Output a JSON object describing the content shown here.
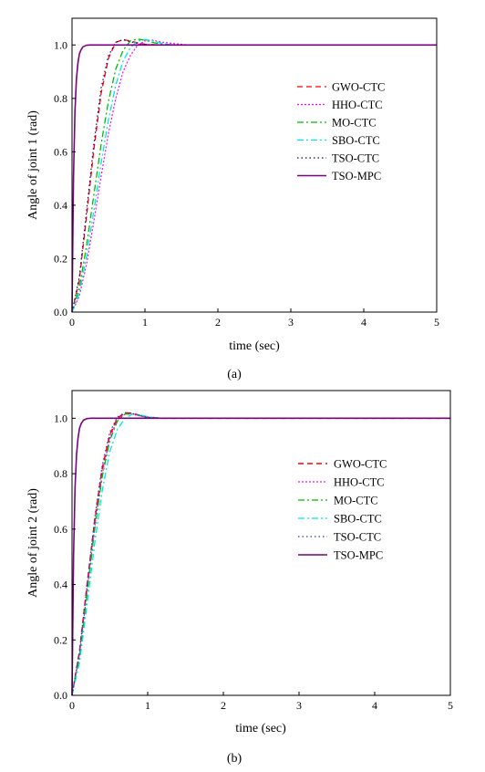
{
  "chart_data": [
    {
      "type": "line",
      "caption": "(a)",
      "xlabel": "time (sec)",
      "ylabel": "Angle of joint 1 (rad)",
      "xlim": [
        0,
        5
      ],
      "ylim": [
        0,
        1.1
      ],
      "xticks": [
        "0",
        "1",
        "2",
        "3",
        "4",
        "5"
      ],
      "yticks": [
        "0.0",
        "0.2",
        "0.4",
        "0.6",
        "0.8",
        "1.0"
      ],
      "grid": false,
      "legend_position": "right",
      "series": [
        {
          "name": "GWO-CTC",
          "color": "#ff0000",
          "dash": "6,4",
          "width": 1.3,
          "x": [
            0,
            0.1,
            0.2,
            0.3,
            0.4,
            0.5,
            0.6,
            0.7,
            0.8,
            0.9,
            1.0,
            1.2,
            1.5,
            2,
            5
          ],
          "y": [
            0,
            0.12,
            0.36,
            0.61,
            0.82,
            0.95,
            1.01,
            1.02,
            1.015,
            1.008,
            1.003,
            1.0,
            1.0,
            1.0,
            1.0
          ]
        },
        {
          "name": "HHO-CTC",
          "color": "#ff00ff",
          "dash": "2,2",
          "width": 1.2,
          "x": [
            0,
            0.1,
            0.2,
            0.3,
            0.4,
            0.5,
            0.6,
            0.7,
            0.8,
            0.9,
            1.0,
            1.1,
            1.2,
            1.4,
            1.6,
            2,
            5
          ],
          "y": [
            0,
            0.06,
            0.18,
            0.34,
            0.51,
            0.67,
            0.8,
            0.9,
            0.96,
            1.0,
            1.015,
            1.018,
            1.012,
            1.005,
            1.0,
            1.0,
            1.0
          ]
        },
        {
          "name": "MO-CTC",
          "color": "#00bb00",
          "dash": "7,3,2,3",
          "width": 1.3,
          "x": [
            0,
            0.1,
            0.2,
            0.3,
            0.4,
            0.5,
            0.6,
            0.7,
            0.8,
            0.9,
            1.0,
            1.1,
            1.2,
            1.4,
            2,
            5
          ],
          "y": [
            0,
            0.09,
            0.25,
            0.44,
            0.63,
            0.79,
            0.91,
            0.98,
            1.015,
            1.022,
            1.018,
            1.01,
            1.004,
            1.0,
            1.0,
            1.0
          ]
        },
        {
          "name": "SBO-CTC",
          "color": "#00e5e5",
          "dash": "7,3,2,3",
          "width": 1.3,
          "x": [
            0,
            0.1,
            0.2,
            0.3,
            0.4,
            0.5,
            0.6,
            0.7,
            0.8,
            0.9,
            1.0,
            1.1,
            1.2,
            1.4,
            2,
            5
          ],
          "y": [
            0,
            0.07,
            0.21,
            0.38,
            0.56,
            0.72,
            0.85,
            0.94,
            0.99,
            1.015,
            1.02,
            1.016,
            1.008,
            1.0,
            1.0,
            1.0
          ]
        },
        {
          "name": "TSO-CTC",
          "color": "#000080",
          "dash": "1.5,3",
          "width": 1.2,
          "x": [
            0,
            0.1,
            0.2,
            0.3,
            0.4,
            0.5,
            0.6,
            0.7,
            0.8,
            0.9,
            1.0,
            1.2,
            1.5,
            2,
            5
          ],
          "y": [
            0,
            0.13,
            0.38,
            0.63,
            0.84,
            0.96,
            1.01,
            1.02,
            1.012,
            1.006,
            1.002,
            1.0,
            1.0,
            1.0,
            1.0
          ]
        },
        {
          "name": "TSO-MPC",
          "color": "#7a0080",
          "dash": "",
          "width": 1.6,
          "x": [
            0,
            0.02,
            0.04,
            0.06,
            0.08,
            0.1,
            0.12,
            0.15,
            0.2,
            0.25,
            0.3,
            0.4,
            5
          ],
          "y": [
            0,
            0.5,
            0.75,
            0.87,
            0.93,
            0.965,
            0.98,
            0.993,
            0.999,
            1.0,
            1.0,
            1.0,
            1.0
          ]
        }
      ]
    },
    {
      "type": "line",
      "caption": "(b)",
      "xlabel": "time (sec)",
      "ylabel": "Angle of joint 2 (rad)",
      "xlim": [
        0,
        5
      ],
      "ylim": [
        0,
        1.1
      ],
      "xticks": [
        "0",
        "1",
        "2",
        "3",
        "4",
        "5"
      ],
      "yticks": [
        "0.0",
        "0.2",
        "0.4",
        "0.6",
        "0.8",
        "1.0"
      ],
      "grid": false,
      "legend_position": "right",
      "series": [
        {
          "name": "GWO-CTC",
          "color": "#ff0000",
          "dash": "6,4",
          "width": 1.6,
          "x": [
            0,
            0.1,
            0.2,
            0.3,
            0.4,
            0.5,
            0.6,
            0.7,
            0.8,
            0.9,
            1.0,
            1.2,
            2,
            5
          ],
          "y": [
            0,
            0.16,
            0.4,
            0.63,
            0.82,
            0.94,
            1.0,
            1.02,
            1.018,
            1.01,
            1.004,
            1.0,
            1.0,
            1.0
          ]
        },
        {
          "name": "HHO-CTC",
          "color": "#ff00ff",
          "dash": "2,2",
          "width": 1.2,
          "x": [
            0,
            0.1,
            0.2,
            0.3,
            0.4,
            0.5,
            0.6,
            0.7,
            0.8,
            0.9,
            1.0,
            1.2,
            2,
            5
          ],
          "y": [
            0,
            0.15,
            0.38,
            0.61,
            0.8,
            0.93,
            0.995,
            1.015,
            1.015,
            1.008,
            1.003,
            1.0,
            1.0,
            1.0
          ]
        },
        {
          "name": "MO-CTC",
          "color": "#00bb00",
          "dash": "7,3,2,3",
          "width": 1.3,
          "x": [
            0,
            0.1,
            0.2,
            0.3,
            0.4,
            0.5,
            0.6,
            0.7,
            0.8,
            0.9,
            1.0,
            1.2,
            2,
            5
          ],
          "y": [
            0,
            0.14,
            0.37,
            0.6,
            0.79,
            0.92,
            0.99,
            1.015,
            1.016,
            1.01,
            1.004,
            1.0,
            1.0,
            1.0
          ]
        },
        {
          "name": "SBO-CTC",
          "color": "#00e5e5",
          "dash": "7,3,2,3",
          "width": 1.3,
          "x": [
            0,
            0.1,
            0.2,
            0.3,
            0.4,
            0.5,
            0.6,
            0.7,
            0.8,
            0.9,
            1.0,
            1.1,
            1.2,
            2,
            5
          ],
          "y": [
            0,
            0.12,
            0.33,
            0.55,
            0.74,
            0.88,
            0.96,
            1.0,
            1.015,
            1.012,
            1.006,
            1.002,
            1.0,
            1.0,
            1.0
          ]
        },
        {
          "name": "TSO-CTC",
          "color": "#3030d0",
          "dash": "1.5,3",
          "width": 1.3,
          "x": [
            0,
            0.1,
            0.2,
            0.3,
            0.4,
            0.5,
            0.6,
            0.7,
            0.8,
            0.9,
            1.0,
            1.2,
            2,
            5
          ],
          "y": [
            0,
            0.16,
            0.4,
            0.64,
            0.83,
            0.95,
            1.005,
            1.02,
            1.017,
            1.009,
            1.003,
            1.0,
            1.0,
            1.0
          ]
        },
        {
          "name": "TSO-MPC",
          "color": "#7a0080",
          "dash": "",
          "width": 1.6,
          "x": [
            0,
            0.02,
            0.04,
            0.06,
            0.08,
            0.1,
            0.12,
            0.15,
            0.2,
            0.25,
            0.3,
            0.4,
            5
          ],
          "y": [
            0,
            0.5,
            0.75,
            0.87,
            0.93,
            0.965,
            0.98,
            0.993,
            0.999,
            1.0,
            1.0,
            1.0,
            1.0
          ]
        }
      ]
    }
  ]
}
